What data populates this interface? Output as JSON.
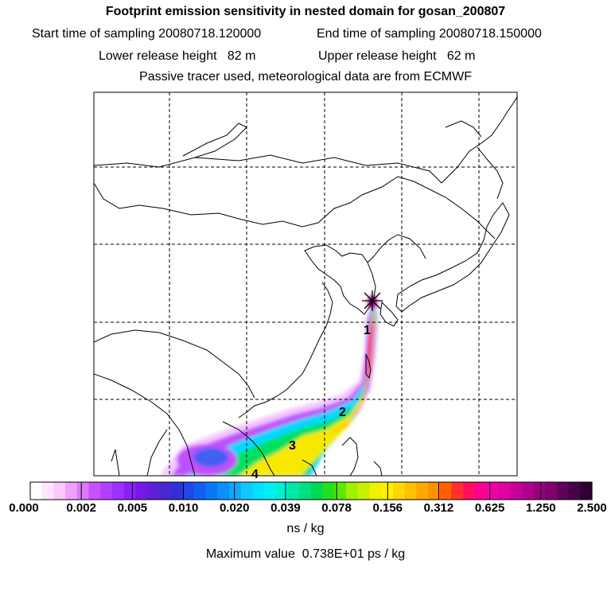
{
  "header": {
    "title": "Footprint emission sensitivity in nested domain for gosan_200807",
    "start_label": "Start time of sampling 20080718.120000",
    "end_label": "End time of sampling 20080718.150000",
    "lower_label": "Lower release height   82 m",
    "upper_label": "Upper release height   62 m",
    "tracer_line": "Passive tracer used, meteorological data are from ECMWF"
  },
  "colorbar": {
    "ticks": [
      "0.000",
      "0.002",
      "0.005",
      "0.010",
      "0.020",
      "0.039",
      "0.078",
      "0.156",
      "0.312",
      "0.625",
      "1.250",
      "2.500"
    ],
    "unit": "ns / kg",
    "colors": [
      "#ffffff",
      "#ffe4ff",
      "#fbc8ff",
      "#f0a0ff",
      "#dc78ff",
      "#c850ff",
      "#b040ff",
      "#a030ff",
      "#8c20f8",
      "#7818e8",
      "#6020d8",
      "#4828d0",
      "#3030d8",
      "#2048e8",
      "#1060f0",
      "#0878f8",
      "#0890ff",
      "#10a8ff",
      "#10c8ff",
      "#00e0ff",
      "#00f0f0",
      "#00f0d0",
      "#00e8a8",
      "#00e080",
      "#00d850",
      "#20e020",
      "#60e800",
      "#a0f000",
      "#c8f000",
      "#f0f000",
      "#fff000",
      "#ffd800",
      "#ffc000",
      "#ffa800",
      "#ff9000",
      "#ff6000",
      "#ff3030",
      "#ff1060",
      "#ff0090",
      "#f000a8",
      "#e000a0",
      "#c80098",
      "#b00090",
      "#980080",
      "#800070",
      "#600058",
      "#480048",
      "#300030"
    ]
  },
  "max_line": "Maximum value  0.738E+01 ps / kg",
  "trajectory_labels": [
    "1",
    "2",
    "3",
    "4"
  ],
  "map_colors": {
    "coast": "#000000",
    "grid": "#000000"
  }
}
